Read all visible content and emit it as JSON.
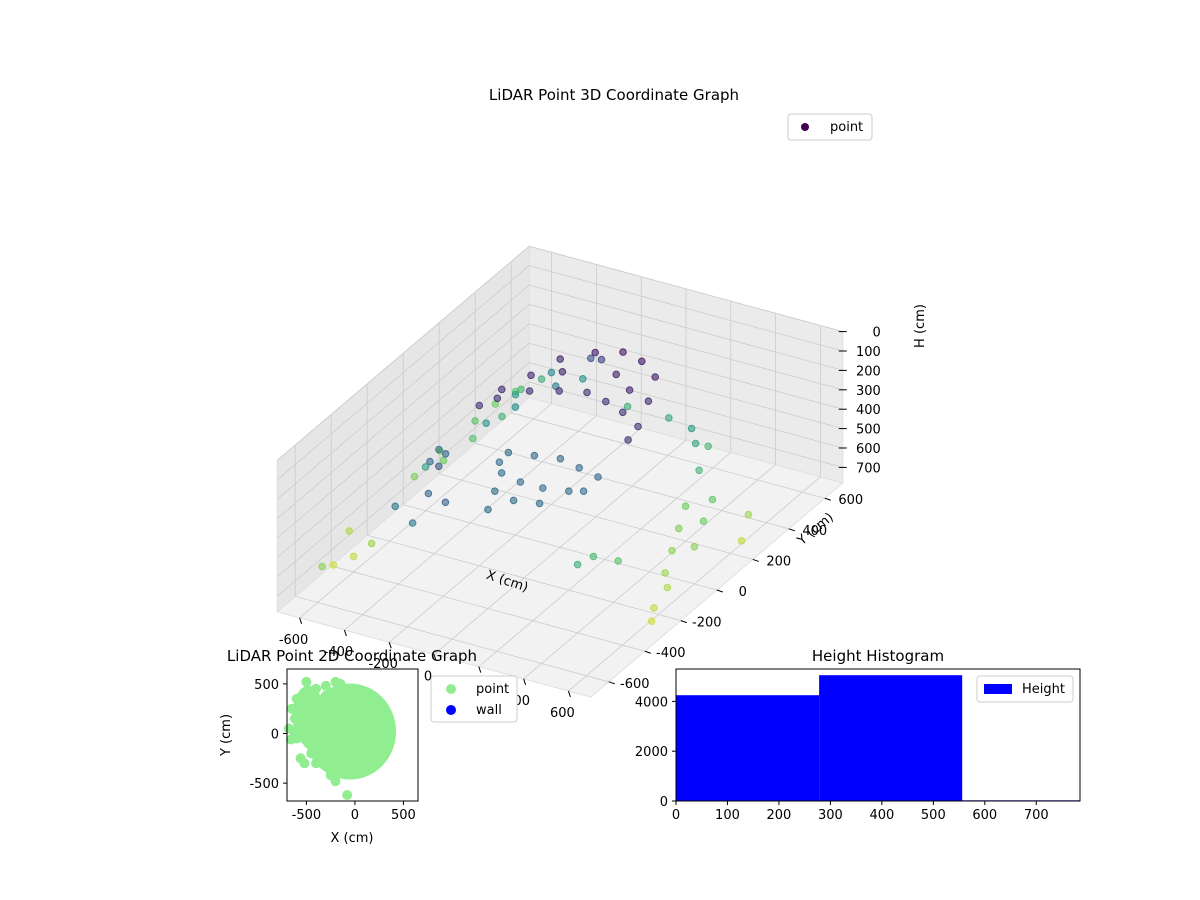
{
  "chart_data": [
    {
      "type": "scatter",
      "title": "LiDAR Point 3D Coordinate Graph",
      "xlabel": "X (cm)",
      "ylabel": "Y (cm)",
      "zlabel": "H (cm)",
      "xlim": [
        -700,
        700
      ],
      "ylim": [
        -700,
        700
      ],
      "zlim": [
        0,
        780
      ],
      "x_ticks": [
        -600,
        -400,
        -200,
        0,
        200,
        400,
        600
      ],
      "y_ticks": [
        -600,
        -400,
        -200,
        0,
        200,
        400,
        600
      ],
      "z_ticks": [
        0,
        100,
        200,
        300,
        400,
        500,
        600,
        700
      ],
      "colormap": "viridis",
      "legend": {
        "entries": [
          "point"
        ],
        "location": "upper-right"
      },
      "series": [
        {
          "name": "point",
          "points": [
            [
              -200,
              250,
              70
            ],
            [
              -100,
              320,
              60
            ],
            [
              0,
              350,
              50
            ],
            [
              100,
              330,
              50
            ],
            [
              200,
              280,
              60
            ],
            [
              -250,
              150,
              90
            ],
            [
              -150,
              200,
              80
            ],
            [
              50,
              250,
              70
            ],
            [
              150,
              200,
              80
            ],
            [
              250,
              180,
              90
            ],
            [
              -300,
              50,
              100
            ],
            [
              -200,
              80,
              100
            ],
            [
              -100,
              120,
              100
            ],
            [
              0,
              150,
              100
            ],
            [
              100,
              130,
              100
            ],
            [
              200,
              100,
              100
            ],
            [
              300,
              60,
              110
            ],
            [
              -320,
              -50,
              110
            ],
            [
              -280,
              0,
              100
            ],
            [
              320,
              -20,
              110
            ],
            [
              -150,
              -100,
              260
            ],
            [
              -50,
              -80,
              260
            ],
            [
              50,
              -60,
              260
            ],
            [
              150,
              -80,
              260
            ],
            [
              250,
              -100,
              260
            ],
            [
              -100,
              -200,
              270
            ],
            [
              0,
              -220,
              270
            ],
            [
              100,
              -220,
              270
            ],
            [
              200,
              -200,
              270
            ],
            [
              -50,
              -300,
              270
            ],
            [
              50,
              -320,
              270
            ],
            [
              150,
              -300,
              270
            ],
            [
              -150,
              -150,
              270
            ],
            [
              250,
              -180,
              270
            ],
            [
              0,
              -400,
              270
            ],
            [
              -500,
              300,
              500
            ],
            [
              -550,
              200,
              550
            ],
            [
              -600,
              100,
              600
            ],
            [
              -650,
              0,
              620
            ],
            [
              -520,
              -100,
              450
            ],
            [
              -450,
              150,
              400
            ],
            [
              -400,
              250,
              380
            ],
            [
              -480,
              350,
              420
            ],
            [
              -620,
              300,
              560
            ],
            [
              -680,
              180,
              640
            ],
            [
              -350,
              -200,
              250
            ],
            [
              -300,
              -300,
              220
            ],
            [
              -380,
              -250,
              260
            ],
            [
              -420,
              -150,
              290
            ],
            [
              -300,
              350,
              320
            ],
            [
              -600,
              -400,
              700
            ],
            [
              -650,
              -450,
              720
            ],
            [
              -700,
              -300,
              680
            ],
            [
              -560,
              -350,
              660
            ],
            [
              -250,
              -420,
              250
            ],
            [
              -150,
              -450,
              240
            ],
            [
              -200,
              420,
              200
            ],
            [
              -120,
              380,
              150
            ],
            [
              400,
              200,
              600
            ],
            [
              450,
              100,
              620
            ],
            [
              500,
              0,
              640
            ],
            [
              550,
              -100,
              660
            ],
            [
              600,
              -150,
              680
            ],
            [
              420,
              -200,
              560
            ],
            [
              380,
              300,
              500
            ],
            [
              480,
              250,
              580
            ],
            [
              520,
              150,
              600
            ],
            [
              560,
              50,
              640
            ],
            [
              620,
              -250,
              700
            ],
            [
              650,
              -300,
              720
            ],
            [
              350,
              -250,
              520
            ],
            [
              300,
              380,
              450
            ],
            [
              360,
              -350,
              480
            ],
            [
              -600,
              500,
              560
            ],
            [
              -650,
              450,
              600
            ],
            [
              -560,
              480,
              520
            ],
            [
              -500,
              520,
              480
            ],
            [
              -620,
              -550,
              640
            ],
            [
              250,
              420,
              420
            ],
            [
              300,
              450,
              520
            ],
            [
              600,
              300,
              660
            ],
            [
              650,
              200,
              700
            ],
            [
              -100,
              500,
              480
            ],
            [
              100,
              480,
              460
            ],
            [
              -300,
              500,
              400
            ],
            [
              -400,
              450,
              360
            ],
            [
              -350,
              -480,
              300
            ],
            [
              -240,
              -520,
              320
            ]
          ]
        }
      ]
    },
    {
      "type": "scatter",
      "title": "LiDAR Point 2D Coordinate Graph",
      "xlabel": "X (cm)",
      "ylabel": "Y (cm)",
      "xlim": [
        -700,
        650
      ],
      "ylim": [
        -680,
        650
      ],
      "x_ticks": [
        -500,
        0,
        500
      ],
      "y_ticks": [
        -500,
        0,
        500
      ],
      "legend": {
        "entries": [
          "point",
          "wall"
        ],
        "location": "outside-right"
      },
      "series": [
        {
          "name": "point",
          "color": "#90ee90",
          "points": [
            [
              -200,
              300
            ],
            [
              -100,
              350
            ],
            [
              0,
              380
            ],
            [
              100,
              330
            ],
            [
              200,
              250
            ],
            [
              300,
              100
            ],
            [
              320,
              0
            ],
            [
              280,
              -150
            ],
            [
              200,
              -300
            ],
            [
              100,
              -330
            ],
            [
              0,
              -350
            ],
            [
              -100,
              -330
            ],
            [
              -200,
              -300
            ],
            [
              -300,
              -200
            ],
            [
              -350,
              0
            ],
            [
              -300,
              150
            ],
            [
              -250,
              250
            ],
            [
              0,
              0
            ],
            [
              100,
              100
            ],
            [
              -100,
              -100
            ],
            [
              150,
              -100
            ],
            [
              -150,
              100
            ],
            [
              50,
              200
            ],
            [
              -50,
              -200
            ],
            [
              200,
              50
            ],
            [
              -200,
              50
            ],
            [
              0,
              250
            ],
            [
              0,
              -250
            ],
            [
              250,
              -50
            ],
            [
              -250,
              -50
            ],
            [
              -600,
              350
            ],
            [
              -650,
              250
            ],
            [
              -620,
              150
            ],
            [
              -680,
              50
            ],
            [
              -600,
              -50
            ],
            [
              -550,
              50
            ],
            [
              -500,
              150
            ],
            [
              -520,
              250
            ],
            [
              -450,
              350
            ],
            [
              -400,
              450
            ],
            [
              -300,
              480
            ],
            [
              -200,
              520
            ],
            [
              -150,
              500
            ],
            [
              -500,
              520
            ],
            [
              -560,
              -250
            ],
            [
              -520,
              -300
            ],
            [
              -250,
              -420
            ],
            [
              -200,
              -480
            ],
            [
              -80,
              -620
            ],
            [
              -400,
              -300
            ],
            [
              -450,
              -200
            ],
            [
              -480,
              -100
            ],
            [
              -420,
              0
            ],
            [
              -400,
              100
            ],
            [
              -380,
              200
            ],
            [
              -350,
              300
            ],
            [
              -100,
              450
            ],
            [
              -300,
              380
            ],
            [
              100,
              420
            ],
            [
              -620,
              0
            ],
            [
              -660,
              -60
            ],
            [
              300,
              180
            ],
            [
              350,
              50
            ],
            [
              150,
              300
            ]
          ]
        },
        {
          "name": "wall",
          "color": "#0000ff",
          "points": []
        }
      ]
    },
    {
      "type": "bar",
      "title": "Height Histogram",
      "xlabel": "",
      "ylabel": "",
      "bin_edges": [
        0,
        278,
        556,
        785
      ],
      "values": [
        4250,
        5050,
        30
      ],
      "xlim": [
        0,
        785
      ],
      "ylim": [
        0,
        5300
      ],
      "x_ticks": [
        0,
        100,
        200,
        300,
        400,
        500,
        600,
        700
      ],
      "y_ticks": [
        0,
        2000,
        4000
      ],
      "legend": {
        "entries": [
          "Height"
        ],
        "location": "upper-right"
      },
      "series": [
        {
          "name": "Height",
          "color": "#0000ff"
        }
      ]
    }
  ]
}
